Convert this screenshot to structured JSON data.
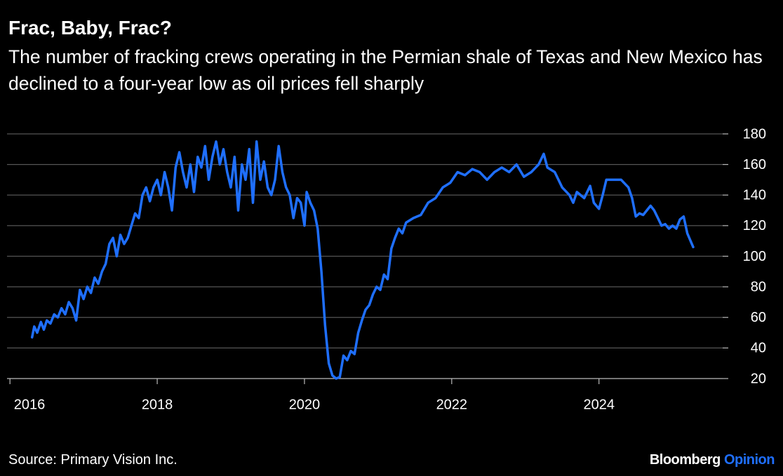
{
  "chart_data": {
    "type": "line",
    "title": "Frac, Baby, Frac?",
    "subtitle": "The number of fracking crews operating in the Permian shale of Texas and New Mexico has declined to a four-year low as oil prices fell sharply",
    "source": "Source: Primary Vision Inc.",
    "brand": {
      "name": "Bloomberg",
      "section": "Opinion"
    },
    "color": "#1f6fff",
    "x": [
      2016.3,
      2016.33,
      2016.37,
      2016.42,
      2016.46,
      2016.5,
      2016.55,
      2016.6,
      2016.65,
      2016.7,
      2016.75,
      2016.8,
      2016.85,
      2016.9,
      2016.95,
      2017.0,
      2017.05,
      2017.1,
      2017.15,
      2017.2,
      2017.25,
      2017.3,
      2017.35,
      2017.4,
      2017.45,
      2017.5,
      2017.55,
      2017.6,
      2017.65,
      2017.7,
      2017.75,
      2017.8,
      2017.85,
      2017.9,
      2017.95,
      2018.0,
      2018.05,
      2018.1,
      2018.15,
      2018.2,
      2018.25,
      2018.3,
      2018.35,
      2018.4,
      2018.45,
      2018.5,
      2018.55,
      2018.6,
      2018.65,
      2018.7,
      2018.75,
      2018.8,
      2018.85,
      2018.9,
      2018.95,
      2019.0,
      2019.05,
      2019.1,
      2019.15,
      2019.2,
      2019.25,
      2019.3,
      2019.35,
      2019.4,
      2019.45,
      2019.5,
      2019.55,
      2019.6,
      2019.65,
      2019.7,
      2019.75,
      2019.8,
      2019.85,
      2019.9,
      2019.95,
      2020.0,
      2020.03,
      2020.08,
      2020.13,
      2020.18,
      2020.23,
      2020.28,
      2020.33,
      2020.38,
      2020.43,
      2020.48,
      2020.53,
      2020.58,
      2020.63,
      2020.68,
      2020.73,
      2020.78,
      2020.83,
      2020.88,
      2020.93,
      2020.98,
      2021.03,
      2021.08,
      2021.13,
      2021.18,
      2021.23,
      2021.28,
      2021.33,
      2021.38,
      2021.48,
      2021.58,
      2021.68,
      2021.78,
      2021.88,
      2021.98,
      2022.08,
      2022.18,
      2022.28,
      2022.38,
      2022.48,
      2022.58,
      2022.68,
      2022.78,
      2022.88,
      2022.98,
      2023.08,
      2023.18,
      2023.25,
      2023.3,
      2023.4,
      2023.5,
      2023.6,
      2023.65,
      2023.7,
      2023.8,
      2023.88,
      2023.93,
      2024.0,
      2024.05,
      2024.1,
      2024.2,
      2024.3,
      2024.4,
      2024.45,
      2024.5,
      2024.55,
      2024.6,
      2024.7,
      2024.75,
      2024.8,
      2024.85,
      2024.9,
      2024.95,
      2025.0,
      2025.05,
      2025.1,
      2025.15,
      2025.2,
      2025.28
    ],
    "values": [
      47,
      54,
      50,
      57,
      52,
      58,
      56,
      62,
      60,
      66,
      62,
      70,
      66,
      58,
      78,
      72,
      80,
      76,
      86,
      82,
      90,
      95,
      108,
      112,
      100,
      114,
      108,
      112,
      120,
      128,
      125,
      140,
      145,
      136,
      145,
      150,
      140,
      155,
      145,
      130,
      158,
      168,
      155,
      145,
      160,
      142,
      165,
      158,
      172,
      150,
      165,
      175,
      160,
      170,
      155,
      145,
      165,
      130,
      160,
      150,
      170,
      135,
      175,
      150,
      162,
      145,
      140,
      150,
      172,
      155,
      145,
      140,
      125,
      138,
      135,
      120,
      142,
      135,
      130,
      118,
      90,
      55,
      30,
      22,
      20,
      21,
      35,
      32,
      38,
      36,
      50,
      58,
      65,
      68,
      75,
      80,
      78,
      88,
      85,
      105,
      112,
      118,
      115,
      122,
      125,
      127,
      135,
      138,
      145,
      148,
      155,
      153,
      157,
      155,
      150,
      155,
      158,
      155,
      160,
      152,
      155,
      160,
      167,
      158,
      155,
      145,
      140,
      135,
      142,
      138,
      146,
      135,
      131,
      140,
      150,
      150,
      150,
      145,
      138,
      126,
      128,
      127,
      133,
      130,
      125,
      120,
      121,
      118,
      120,
      118,
      124,
      126,
      115,
      106
    ],
    "xlim": [
      2015.96,
      2025.68
    ],
    "xticks": [
      2016,
      2018,
      2020,
      2022,
      2024
    ],
    "ylim": [
      20,
      180
    ],
    "yticks": [
      20,
      40,
      60,
      80,
      100,
      120,
      140,
      160,
      180
    ],
    "grid": true
  }
}
